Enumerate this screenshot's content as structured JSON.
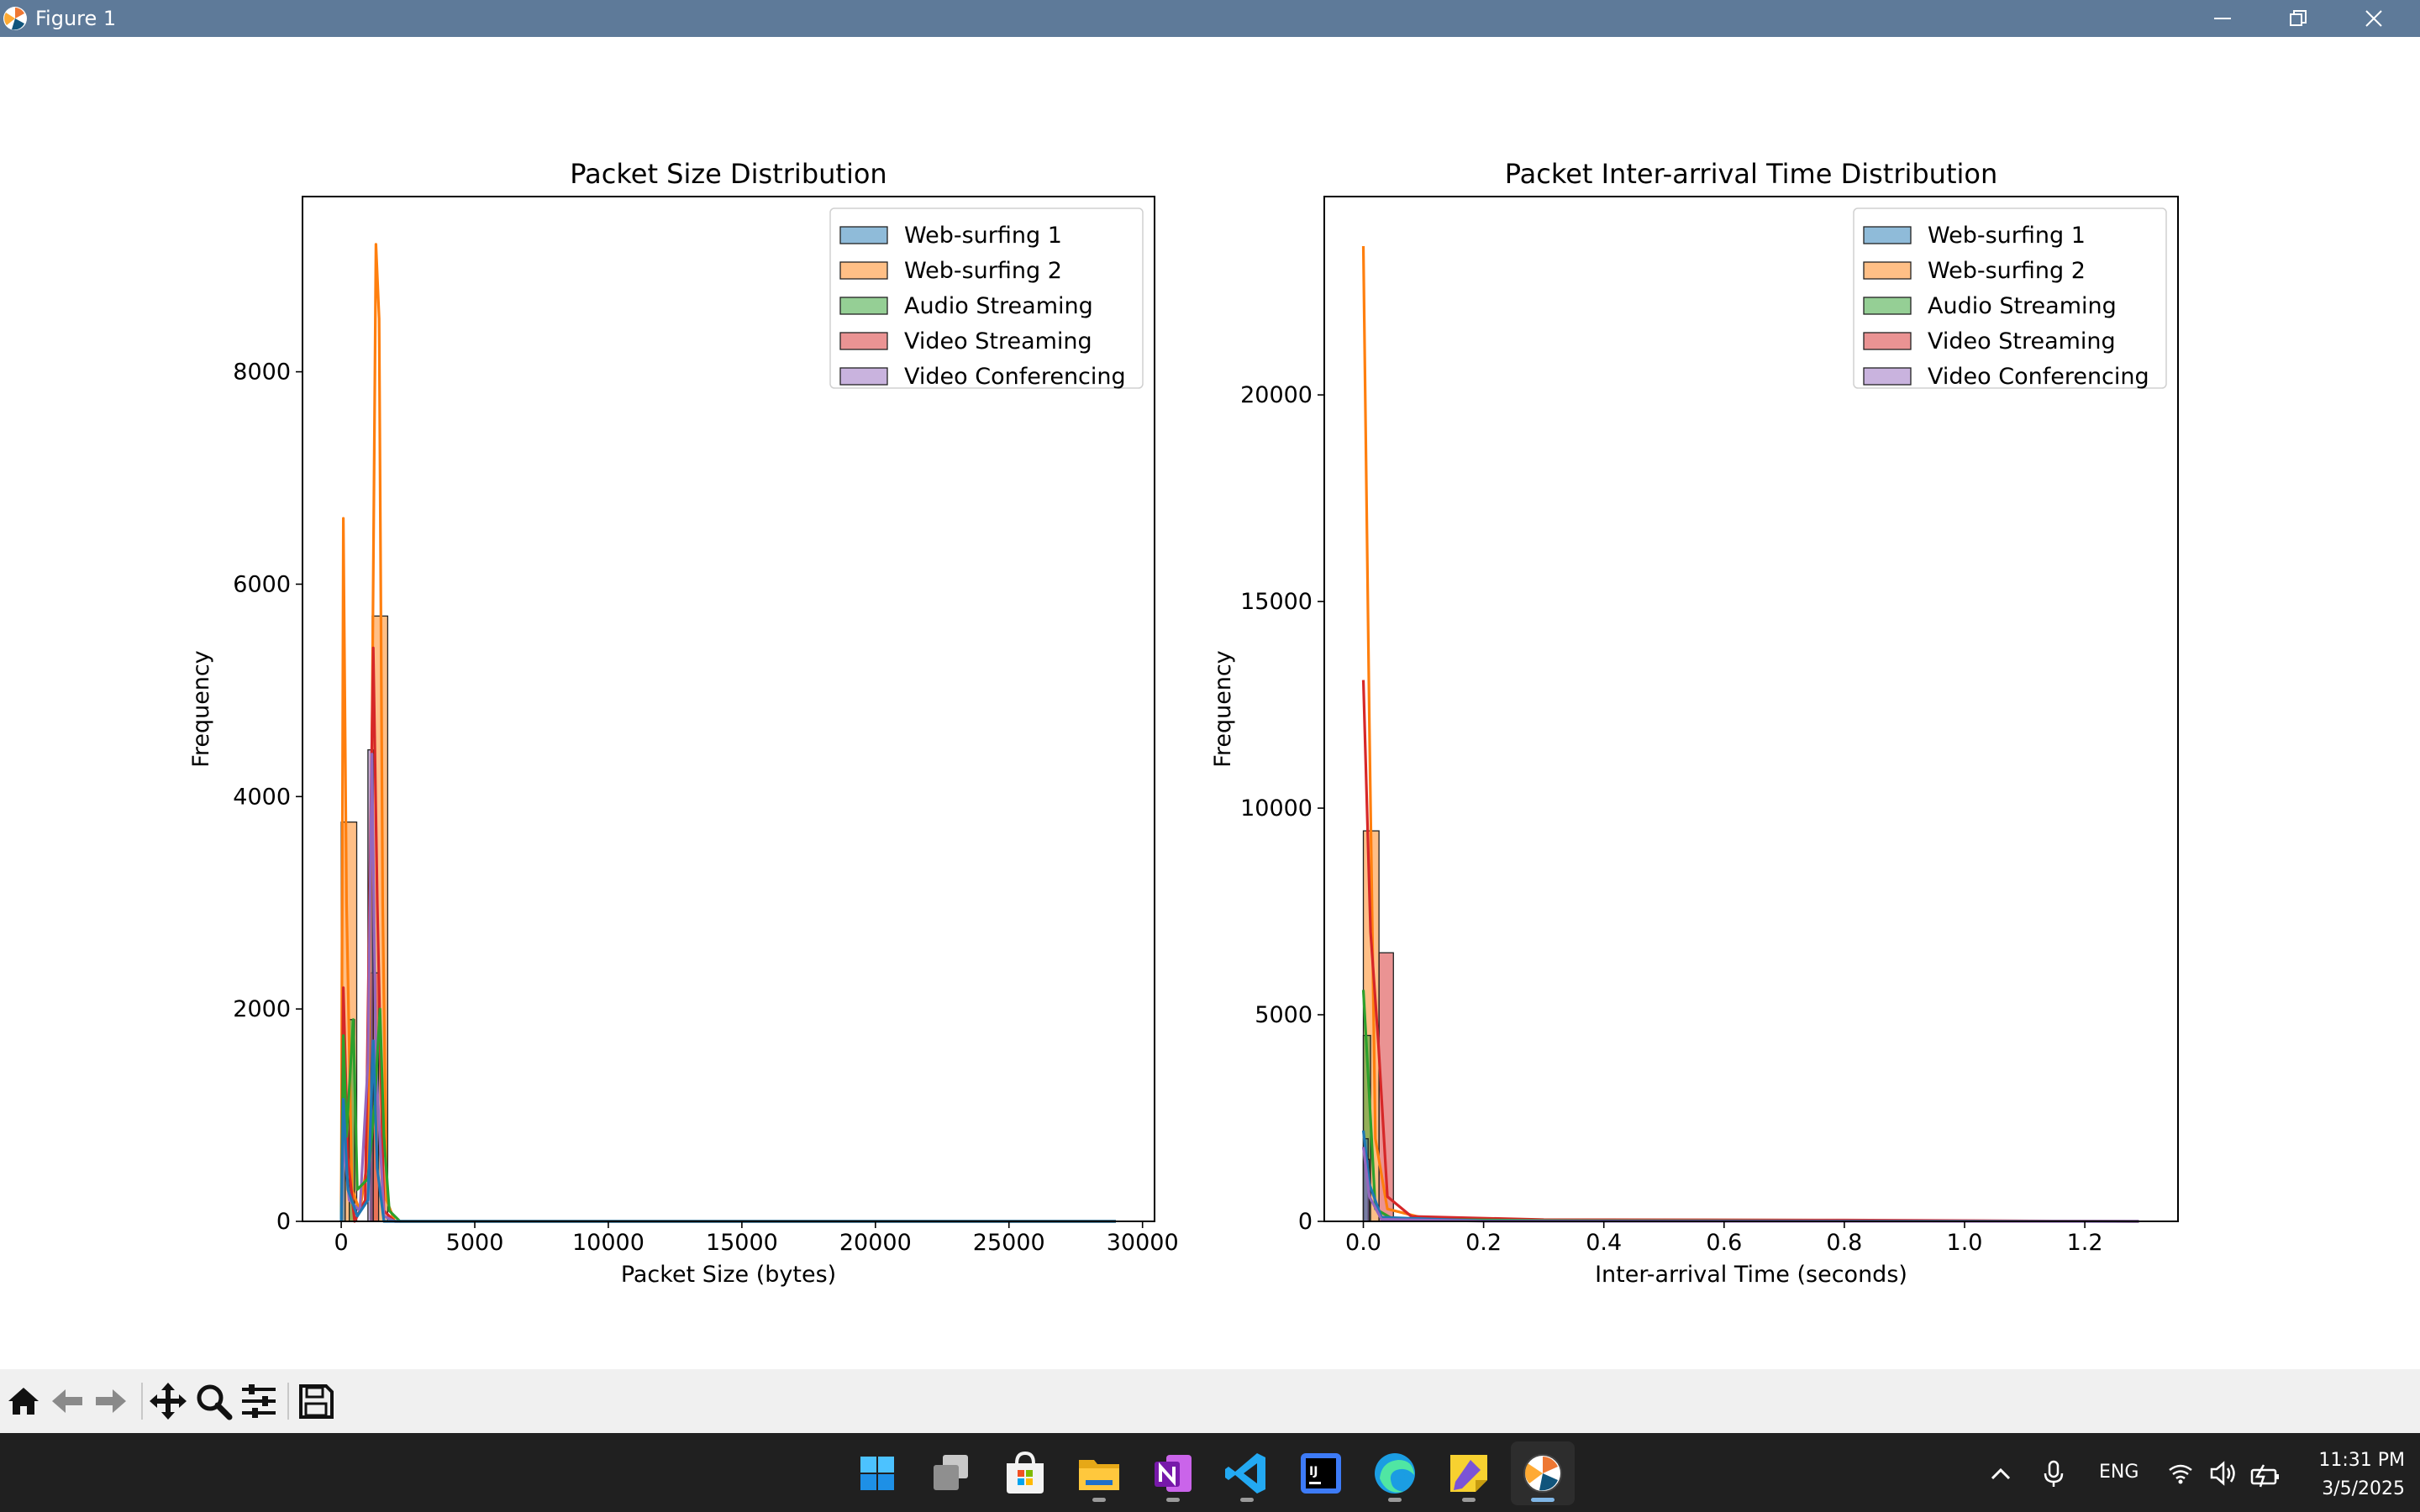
{
  "window": {
    "title": "Figure 1"
  },
  "colors": {
    "Web-surfing 1": "#1f77b4",
    "Web-surfing 2": "#ff7f0e",
    "Audio Streaming": "#2ca02c",
    "Video Streaming": "#d62728",
    "Video Conferencing": "#9467bd"
  },
  "toolbar": {
    "home_icon": "home-icon",
    "back_icon": "arrow-left-icon",
    "forward_icon": "arrow-right-icon",
    "pan_icon": "move-icon",
    "zoom_icon": "magnifier-icon",
    "configure_icon": "sliders-icon",
    "save_icon": "floppy-disk-icon"
  },
  "taskbar": {
    "apps": [
      "start-icon",
      "task-view-icon",
      "store-icon",
      "file-explorer-icon",
      "onenote-icon",
      "vscode-icon",
      "intellij-icon",
      "edge-icon",
      "sticky-notes-icon",
      "matplotlib-figure-icon"
    ],
    "language": "ENG",
    "time": "11:31 PM",
    "date": "3/5/2025"
  },
  "chart_data": [
    {
      "type": "histogram",
      "title": "Packet Size Distribution",
      "xlabel": "Packet Size (bytes)",
      "ylabel": "Frequency",
      "xlim": [
        -1450,
        30450
      ],
      "ylim": [
        0,
        9650
      ],
      "xticks": [
        0,
        5000,
        10000,
        15000,
        20000,
        25000,
        30000
      ],
      "yticks": [
        0,
        2000,
        4000,
        6000,
        8000
      ],
      "xtick_labels": [
        "0",
        "5000",
        "10000",
        "15000",
        "20000",
        "25000",
        "30000"
      ],
      "ytick_labels": [
        "0",
        "2000",
        "4000",
        "6000",
        "8000"
      ],
      "legend": [
        "Web-surfing 1",
        "Web-surfing 2",
        "Audio Streaming",
        "Video Streaming",
        "Video Conferencing"
      ],
      "legend_position": "top-right",
      "series": [
        {
          "name": "Web-surfing 2",
          "bins": [
            [
              0,
              580,
              3760
            ],
            [
              580,
              1160,
              0
            ],
            [
              1160,
              1740,
              5700
            ]
          ],
          "kde": [
            [
              0,
              0
            ],
            [
              80,
              6620
            ],
            [
              200,
              3000
            ],
            [
              400,
              300
            ],
            [
              700,
              100
            ],
            [
              1000,
              600
            ],
            [
              1150,
              4500
            ],
            [
              1300,
              9200
            ],
            [
              1420,
              8500
            ],
            [
              1550,
              3000
            ],
            [
              1700,
              200
            ],
            [
              2000,
              0
            ],
            [
              29000,
              0
            ]
          ]
        },
        {
          "name": "Video Streaming",
          "bins": [
            [
              1100,
              1400,
              2340
            ]
          ],
          "kde": [
            [
              0,
              0
            ],
            [
              80,
              2200
            ],
            [
              250,
              600
            ],
            [
              500,
              0
            ],
            [
              900,
              200
            ],
            [
              1200,
              5400
            ],
            [
              1350,
              3000
            ],
            [
              1600,
              100
            ],
            [
              2000,
              0
            ],
            [
              29000,
              0
            ]
          ]
        },
        {
          "name": "Video Conferencing",
          "bins": [
            [
              1000,
              1200,
              4440
            ]
          ],
          "kde": [
            [
              0,
              0
            ],
            [
              80,
              780
            ],
            [
              300,
              200
            ],
            [
              700,
              100
            ],
            [
              1000,
              1500
            ],
            [
              1150,
              4400
            ],
            [
              1300,
              1500
            ],
            [
              1600,
              50
            ],
            [
              2000,
              0
            ],
            [
              29000,
              0
            ]
          ]
        },
        {
          "name": "Audio Streaming",
          "bins": [
            [
              300,
              500,
              1900
            ]
          ],
          "kde": [
            [
              0,
              0
            ],
            [
              80,
              1750
            ],
            [
              200,
              800
            ],
            [
              450,
              1900
            ],
            [
              600,
              300
            ],
            [
              1000,
              400
            ],
            [
              1250,
              1100
            ],
            [
              1450,
              2000
            ],
            [
              1600,
              800
            ],
            [
              1800,
              100
            ],
            [
              2200,
              0
            ],
            [
              29000,
              0
            ]
          ]
        },
        {
          "name": "Web-surfing 1",
          "bins": [
            [
              0,
              150,
              1150
            ]
          ],
          "kde": [
            [
              0,
              0
            ],
            [
              80,
              1150
            ],
            [
              250,
              300
            ],
            [
              600,
              50
            ],
            [
              1000,
              200
            ],
            [
              1200,
              1700
            ],
            [
              1350,
              500
            ],
            [
              1600,
              0
            ],
            [
              29000,
              0
            ]
          ]
        }
      ]
    },
    {
      "type": "histogram",
      "title": "Packet Inter-arrival Time Distribution",
      "xlabel": "Inter-arrival Time (seconds)",
      "ylabel": "Frequency",
      "xlim": [
        -0.065,
        1.355
      ],
      "ylim": [
        0,
        24800
      ],
      "xticks": [
        0.0,
        0.2,
        0.4,
        0.6,
        0.8,
        1.0,
        1.2
      ],
      "yticks": [
        0,
        5000,
        10000,
        15000,
        20000
      ],
      "xtick_labels": [
        "0.0",
        "0.2",
        "0.4",
        "0.6",
        "0.8",
        "1.0",
        "1.2"
      ],
      "ytick_labels": [
        "0",
        "5000",
        "10000",
        "15000",
        "20000"
      ],
      "legend": [
        "Web-surfing 1",
        "Web-surfing 2",
        "Audio Streaming",
        "Video Streaming",
        "Video Conferencing"
      ],
      "legend_position": "top-right",
      "series": [
        {
          "name": "Web-surfing 2",
          "bins": [
            [
              0.0,
              0.026,
              9450
            ]
          ],
          "kde": [
            [
              0.0,
              23600
            ],
            [
              0.01,
              12000
            ],
            [
              0.02,
              2000
            ],
            [
              0.04,
              300
            ],
            [
              0.1,
              80
            ],
            [
              0.3,
              30
            ],
            [
              0.6,
              20
            ],
            [
              1.0,
              10
            ],
            [
              1.29,
              0
            ]
          ]
        },
        {
          "name": "Video Streaming",
          "bins": [
            [
              0.026,
              0.05,
              6500
            ]
          ],
          "kde": [
            [
              0.0,
              13100
            ],
            [
              0.012,
              7000
            ],
            [
              0.025,
              4300
            ],
            [
              0.04,
              600
            ],
            [
              0.08,
              120
            ],
            [
              0.3,
              40
            ],
            [
              0.8,
              30
            ],
            [
              1.29,
              0
            ]
          ]
        },
        {
          "name": "Audio Streaming",
          "bins": [
            [
              0.0,
              0.012,
              4500
            ]
          ],
          "kde": [
            [
              0.0,
              5600
            ],
            [
              0.01,
              3000
            ],
            [
              0.02,
              300
            ],
            [
              0.05,
              50
            ],
            [
              0.3,
              20
            ],
            [
              1.29,
              0
            ]
          ]
        },
        {
          "name": "Web-surfing 1",
          "bins": [
            [
              0.0,
              0.008,
              2000
            ]
          ],
          "kde": [
            [
              0.0,
              2200
            ],
            [
              0.01,
              900
            ],
            [
              0.03,
              100
            ],
            [
              0.2,
              10
            ],
            [
              1.29,
              0
            ]
          ]
        },
        {
          "name": "Video Conferencing",
          "bins": [
            [
              0.0,
              0.01,
              1500
            ]
          ],
          "kde": [
            [
              0.0,
              1800
            ],
            [
              0.01,
              600
            ],
            [
              0.03,
              50
            ],
            [
              0.2,
              5
            ],
            [
              1.29,
              0
            ]
          ]
        }
      ]
    }
  ]
}
